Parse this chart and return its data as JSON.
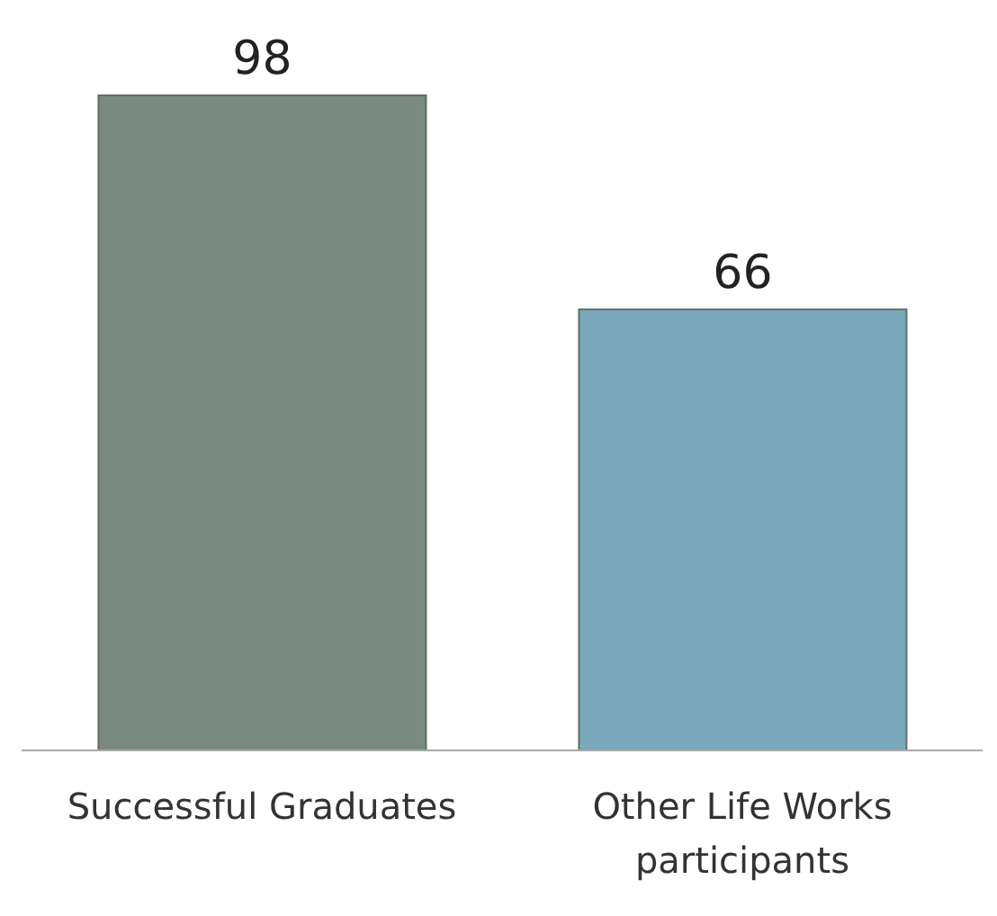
{
  "chart_data": {
    "type": "bar",
    "categories": [
      "Successful Graduates",
      "Other Life Works participants"
    ],
    "values": [
      98,
      66
    ],
    "colors": [
      "#7b8a80",
      "#79a9ba"
    ],
    "data_labels": true,
    "grid": false,
    "legend": false
  }
}
